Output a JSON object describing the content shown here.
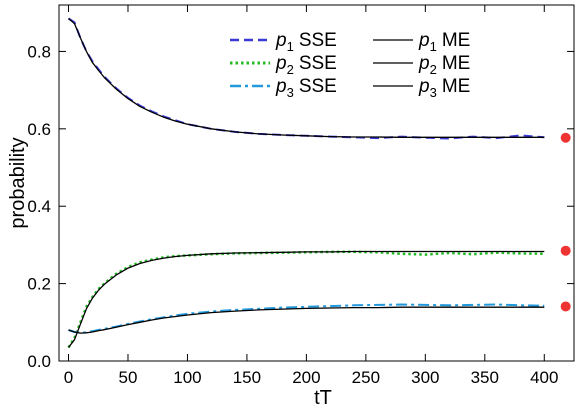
{
  "chart_data": {
    "type": "line",
    "title": "",
    "xlabel": "tT",
    "ylabel": "probability",
    "xlim": [
      -8,
      425
    ],
    "ylim": [
      0.0,
      0.92
    ],
    "xticks": [
      0,
      50,
      100,
      150,
      200,
      250,
      300,
      350,
      400
    ],
    "yticks": [
      0.0,
      0.2,
      0.4,
      0.6,
      0.8
    ],
    "ytick_labels": [
      "0.0",
      "0.2",
      "0.4",
      "0.6",
      "0.8"
    ],
    "grid": false,
    "legend_position": "top-center",
    "series": [
      {
        "name": "p1 SSE",
        "label_main": "p",
        "label_sub": "1",
        "label_suffix": "SSE",
        "style": "dashed",
        "color": "#3a3ad8",
        "x": [
          0,
          5,
          10,
          15,
          20,
          25,
          30,
          40,
          50,
          60,
          70,
          80,
          90,
          100,
          120,
          140,
          160,
          180,
          200,
          220,
          240,
          260,
          280,
          300,
          320,
          340,
          360,
          380,
          400
        ],
        "y": [
          0.885,
          0.875,
          0.835,
          0.8,
          0.775,
          0.755,
          0.735,
          0.705,
          0.68,
          0.66,
          0.645,
          0.632,
          0.622,
          0.612,
          0.6,
          0.592,
          0.587,
          0.584,
          0.582,
          0.58,
          0.578,
          0.576,
          0.58,
          0.577,
          0.575,
          0.58,
          0.576,
          0.583,
          0.578
        ]
      },
      {
        "name": "p2 SSE",
        "label_main": "p",
        "label_sub": "2",
        "label_suffix": "SSE",
        "style": "dotted",
        "color": "#22bb22",
        "x": [
          0,
          5,
          10,
          15,
          20,
          25,
          30,
          40,
          50,
          60,
          70,
          80,
          90,
          100,
          120,
          140,
          160,
          180,
          200,
          220,
          240,
          260,
          280,
          300,
          320,
          340,
          360,
          380,
          400
        ],
        "y": [
          0.035,
          0.06,
          0.1,
          0.14,
          0.165,
          0.185,
          0.2,
          0.225,
          0.243,
          0.255,
          0.262,
          0.268,
          0.271,
          0.273,
          0.276,
          0.278,
          0.279,
          0.28,
          0.281,
          0.282,
          0.282,
          0.281,
          0.277,
          0.275,
          0.279,
          0.276,
          0.28,
          0.278,
          0.277
        ]
      },
      {
        "name": "p3 SSE",
        "label_main": "p",
        "label_sub": "3",
        "label_suffix": "SSE",
        "style": "dashdot",
        "color": "#2299dd",
        "x": [
          0,
          5,
          10,
          15,
          20,
          25,
          30,
          40,
          50,
          60,
          70,
          80,
          90,
          100,
          120,
          140,
          160,
          180,
          200,
          220,
          240,
          260,
          280,
          300,
          320,
          340,
          360,
          380,
          400
        ],
        "y": [
          0.08,
          0.075,
          0.073,
          0.074,
          0.077,
          0.08,
          0.083,
          0.089,
          0.096,
          0.102,
          0.108,
          0.113,
          0.118,
          0.122,
          0.128,
          0.132,
          0.135,
          0.138,
          0.14,
          0.142,
          0.144,
          0.145,
          0.146,
          0.145,
          0.144,
          0.145,
          0.146,
          0.144,
          0.143
        ]
      },
      {
        "name": "p1 ME",
        "label_main": "p",
        "label_sub": "1",
        "label_suffix": "ME",
        "style": "solid",
        "color": "#000000",
        "x": [
          0,
          5,
          10,
          15,
          20,
          25,
          30,
          40,
          50,
          60,
          70,
          80,
          90,
          100,
          120,
          140,
          160,
          180,
          200,
          220,
          240,
          260,
          280,
          300,
          320,
          340,
          360,
          380,
          400
        ],
        "y": [
          0.885,
          0.872,
          0.835,
          0.8,
          0.772,
          0.752,
          0.733,
          0.703,
          0.678,
          0.658,
          0.643,
          0.63,
          0.62,
          0.612,
          0.6,
          0.592,
          0.587,
          0.584,
          0.582,
          0.58,
          0.579,
          0.579,
          0.578,
          0.578,
          0.578,
          0.578,
          0.578,
          0.578,
          0.578
        ]
      },
      {
        "name": "p2 ME",
        "label_main": "p",
        "label_sub": "2",
        "label_suffix": "ME",
        "style": "solid",
        "color": "#000000",
        "x": [
          0,
          5,
          10,
          15,
          20,
          25,
          30,
          40,
          50,
          60,
          70,
          80,
          90,
          100,
          120,
          140,
          160,
          180,
          200,
          220,
          240,
          260,
          280,
          300,
          320,
          340,
          360,
          380,
          400
        ],
        "y": [
          0.035,
          0.055,
          0.095,
          0.135,
          0.162,
          0.182,
          0.198,
          0.222,
          0.24,
          0.252,
          0.26,
          0.266,
          0.27,
          0.273,
          0.277,
          0.279,
          0.28,
          0.281,
          0.282,
          0.282,
          0.283,
          0.283,
          0.283,
          0.283,
          0.283,
          0.283,
          0.283,
          0.283,
          0.283
        ]
      },
      {
        "name": "p3 ME",
        "label_main": "p",
        "label_sub": "3",
        "label_suffix": "ME",
        "style": "solid",
        "color": "#000000",
        "x": [
          0,
          5,
          10,
          15,
          20,
          25,
          30,
          40,
          50,
          60,
          70,
          80,
          90,
          100,
          120,
          140,
          160,
          180,
          200,
          220,
          240,
          260,
          280,
          300,
          320,
          340,
          360,
          380,
          400
        ],
        "y": [
          0.08,
          0.075,
          0.072,
          0.073,
          0.075,
          0.078,
          0.081,
          0.087,
          0.094,
          0.1,
          0.106,
          0.111,
          0.115,
          0.119,
          0.125,
          0.129,
          0.132,
          0.134,
          0.136,
          0.137,
          0.138,
          0.138,
          0.139,
          0.139,
          0.139,
          0.139,
          0.139,
          0.139,
          0.139
        ]
      }
    ],
    "markers": {
      "color": "#ee3333",
      "x": 418,
      "y": [
        0.577,
        0.285,
        0.141
      ]
    }
  }
}
